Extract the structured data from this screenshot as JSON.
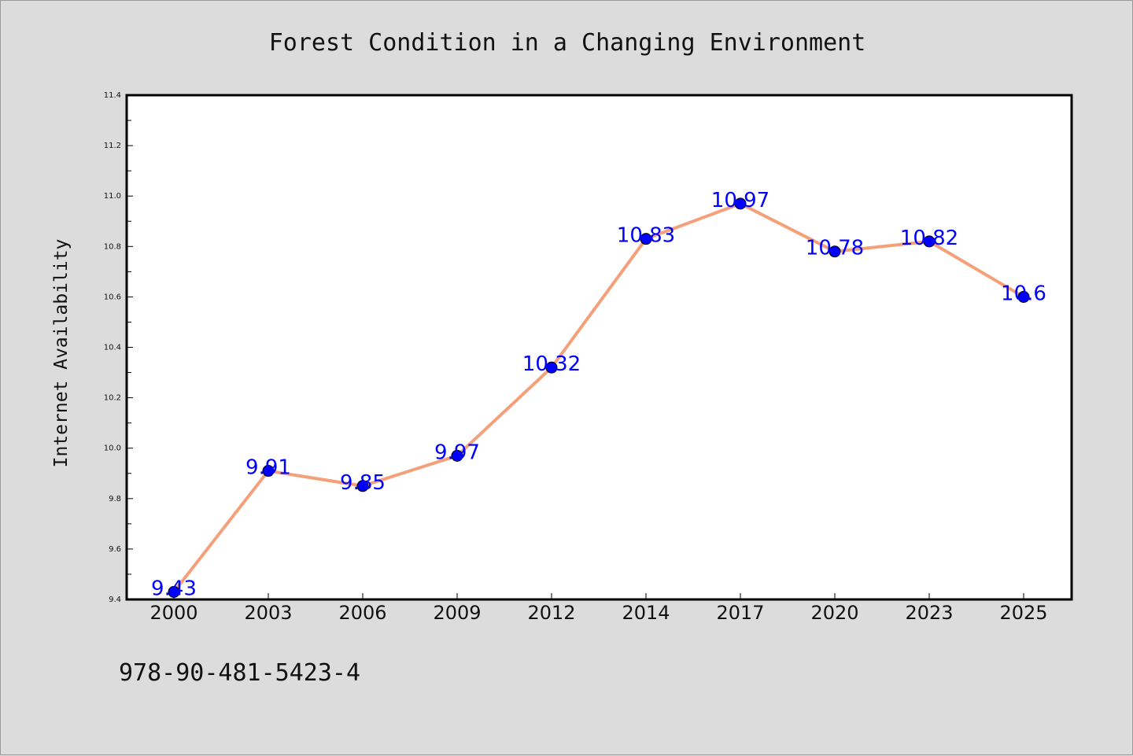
{
  "chart_data": {
    "type": "line",
    "title": "Forest Condition in a Changing Environment",
    "xlabel": "",
    "ylabel": "Internet Availability",
    "categories": [
      "2000",
      "2003",
      "2006",
      "2009",
      "2012",
      "2014",
      "2017",
      "2020",
      "2023",
      "2025"
    ],
    "series": [
      {
        "values": [
          9.43,
          9.91,
          9.85,
          9.97,
          10.32,
          10.83,
          10.97,
          10.78,
          10.82,
          10.6
        ],
        "labels": [
          "9.43",
          "9.91",
          "9.85",
          "9.97",
          "10.32",
          "10.83",
          "10.97",
          "10.78",
          "10.82",
          "10.6"
        ],
        "line_color": "#f4a07a",
        "marker_color": "#0000ff",
        "label_color": "#0000ff"
      }
    ],
    "ylim": [
      9.4,
      11.4
    ],
    "yticks": [
      "9.4",
      "9.6",
      "9.8",
      "10.0",
      "10.2",
      "10.4",
      "10.6",
      "10.8",
      "11.0",
      "11.2",
      "11.4"
    ],
    "grid": false,
    "legend": "none"
  },
  "footer": {
    "code": "978-90-481-5423-4"
  },
  "colors": {
    "background": "#dcdcdc",
    "plot_background": "#ffffff",
    "axis": "#000000"
  }
}
